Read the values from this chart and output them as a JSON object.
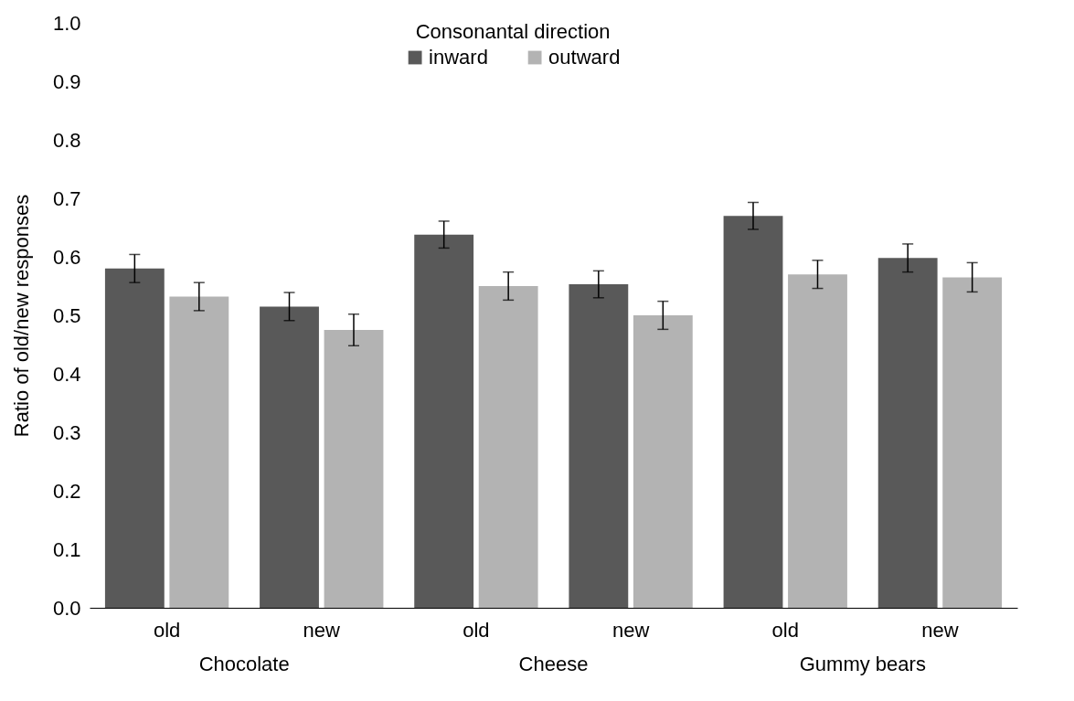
{
  "chart_data": {
    "type": "bar",
    "ylabel": "Ratio of old/new responses",
    "legend_title": "Consonantal direction",
    "categories": [
      "old",
      "new",
      "old",
      "new",
      "old",
      "new"
    ],
    "series": [
      {
        "name": "inward",
        "color": "#595959",
        "values": [
          0.58,
          0.515,
          0.638,
          0.553,
          0.67,
          0.598
        ],
        "errors": [
          0.024,
          0.024,
          0.023,
          0.023,
          0.023,
          0.024
        ]
      },
      {
        "name": "outward",
        "color": "#b3b3b3",
        "values": [
          0.532,
          0.475,
          0.55,
          0.5,
          0.57,
          0.565
        ],
        "errors": [
          0.024,
          0.027,
          0.024,
          0.024,
          0.024,
          0.025
        ]
      }
    ],
    "annotations": [
      "Chocolate",
      "Cheese",
      "Gummy bears"
    ],
    "ylim": [
      0,
      1
    ],
    "yticks": [
      {
        "value": 0,
        "label": "0.0"
      },
      {
        "value": 0.1,
        "label": "0.1"
      },
      {
        "value": 0.2,
        "label": "0.2"
      },
      {
        "value": 0.3,
        "label": "0.3"
      },
      {
        "value": 0.4,
        "label": "0.4"
      },
      {
        "value": 0.5,
        "label": "0.5"
      },
      {
        "value": 0.6,
        "label": "0.6"
      },
      {
        "value": 0.7,
        "label": "0.7"
      },
      {
        "value": 0.8,
        "label": "0.8"
      },
      {
        "value": 0.9,
        "label": "0.9"
      },
      {
        "value": 1.0,
        "label": "1.0"
      }
    ],
    "grid": false,
    "legend": "top"
  }
}
